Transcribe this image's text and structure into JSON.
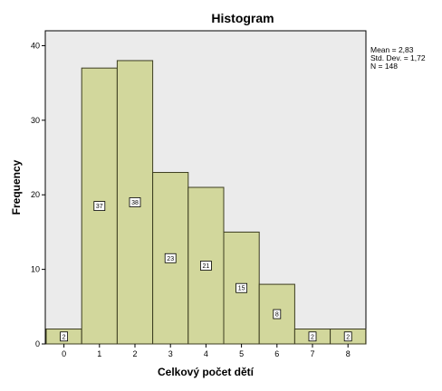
{
  "chart_data": {
    "type": "bar",
    "title": "Histogram",
    "xlabel": "Celkový počet dětí",
    "ylabel": "Frequency",
    "categories": [
      "0",
      "1",
      "2",
      "3",
      "4",
      "5",
      "6",
      "7",
      "8"
    ],
    "values": [
      2,
      37,
      38,
      23,
      21,
      15,
      8,
      2,
      2
    ],
    "data_labels": [
      "2",
      "37",
      "38",
      "23",
      "21",
      "15",
      "8",
      "2",
      "2"
    ],
    "ylim": [
      0,
      42
    ],
    "yticks": [
      0,
      10,
      20,
      30,
      40
    ],
    "grid": false,
    "stats": [
      "Mean = 2,83",
      "Std. Dev. = 1,72",
      "N = 148"
    ],
    "colors": {
      "bar_fill": "#d2d79c",
      "bar_stroke": "#3c3c20",
      "plot_bg": "#ebebeb"
    }
  }
}
